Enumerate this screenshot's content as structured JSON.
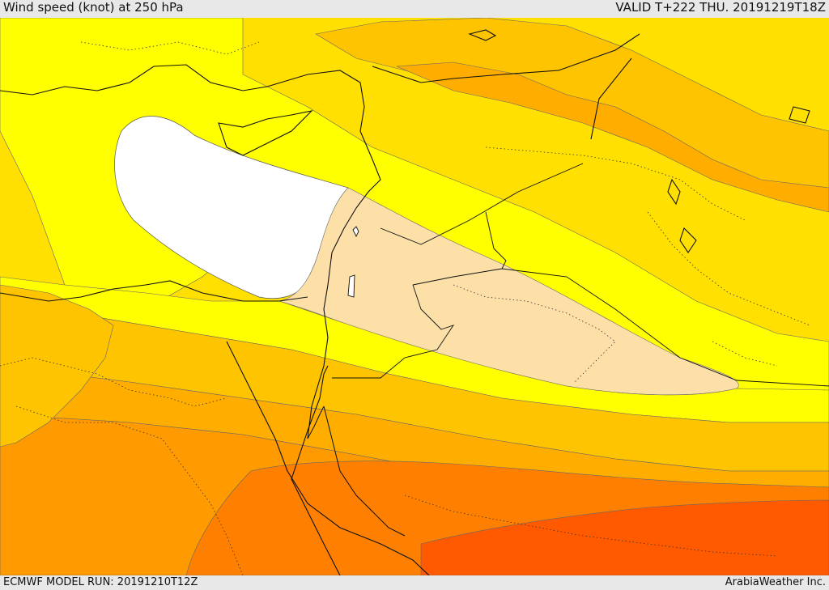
{
  "header": {
    "title": "Wind speed (knot) at 250 hPa",
    "valid": "VALID T+222 THU. 20191219T18Z"
  },
  "footer": {
    "model_run": "ECMWF MODEL RUN: 20191210T12Z",
    "credit": "ArabiaWeather Inc."
  },
  "legend_colors": {
    "band_0": "#ffffff",
    "band_1": "#fde0a8",
    "band_2": "#ffff00",
    "band_3": "#ffe000",
    "band_4": "#ffc400",
    "band_5": "#ffae00",
    "band_6": "#ff9a00",
    "band_7": "#ff8000",
    "band_8": "#ff5a00"
  }
}
